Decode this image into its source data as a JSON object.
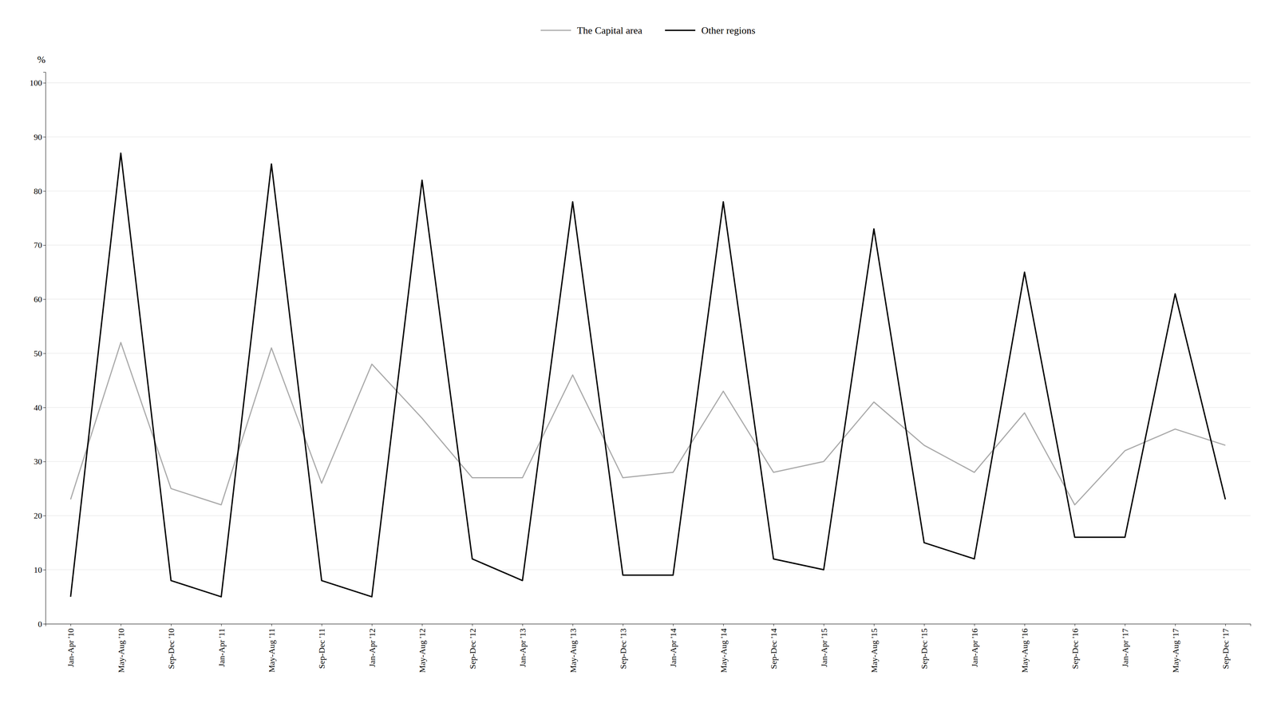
{
  "chart_data": {
    "type": "line",
    "ylabel": "%",
    "categories": [
      "Jan-Apr '10",
      "May-Aug '10",
      "Sep-Dec '10",
      "Jan-Apr '11",
      "May-Aug '11",
      "Sep-Dec '11",
      "Jan-Apr '12",
      "May-Aug '12",
      "Sep-Dec '12",
      "Jan-Apr '13",
      "May-Aug '13",
      "Sep-Dec '13",
      "Jan-Apr '14",
      "May-Aug '14",
      "Sep-Dec '14",
      "Jan-Apr '15",
      "May-Aug '15",
      "Sep-Dec '15",
      "Jan-Apr '16",
      "May-Aug '16",
      "Sep-Dec '16",
      "Jan-Apr '17",
      "May-Aug '17",
      "Sep-Dec '17"
    ],
    "series": [
      {
        "name": "The Capital area",
        "color": "#aaaaaa",
        "values": [
          23,
          52,
          25,
          22,
          51,
          26,
          48,
          38,
          27,
          27,
          46,
          27,
          28,
          43,
          28,
          30,
          41,
          33,
          28,
          39,
          22,
          32,
          36,
          33
        ]
      },
      {
        "name": "Other regions",
        "color": "#000000",
        "values": [
          5,
          87,
          8,
          5,
          85,
          8,
          5,
          82,
          12,
          8,
          78,
          9,
          9,
          78,
          12,
          10,
          73,
          15,
          12,
          65,
          16,
          16,
          61,
          23
        ]
      }
    ],
    "ylim": [
      0,
      102
    ],
    "yticks": [
      0,
      10,
      20,
      30,
      40,
      50,
      60,
      70,
      80,
      90,
      100
    ],
    "grid": true,
    "legend": "top"
  }
}
